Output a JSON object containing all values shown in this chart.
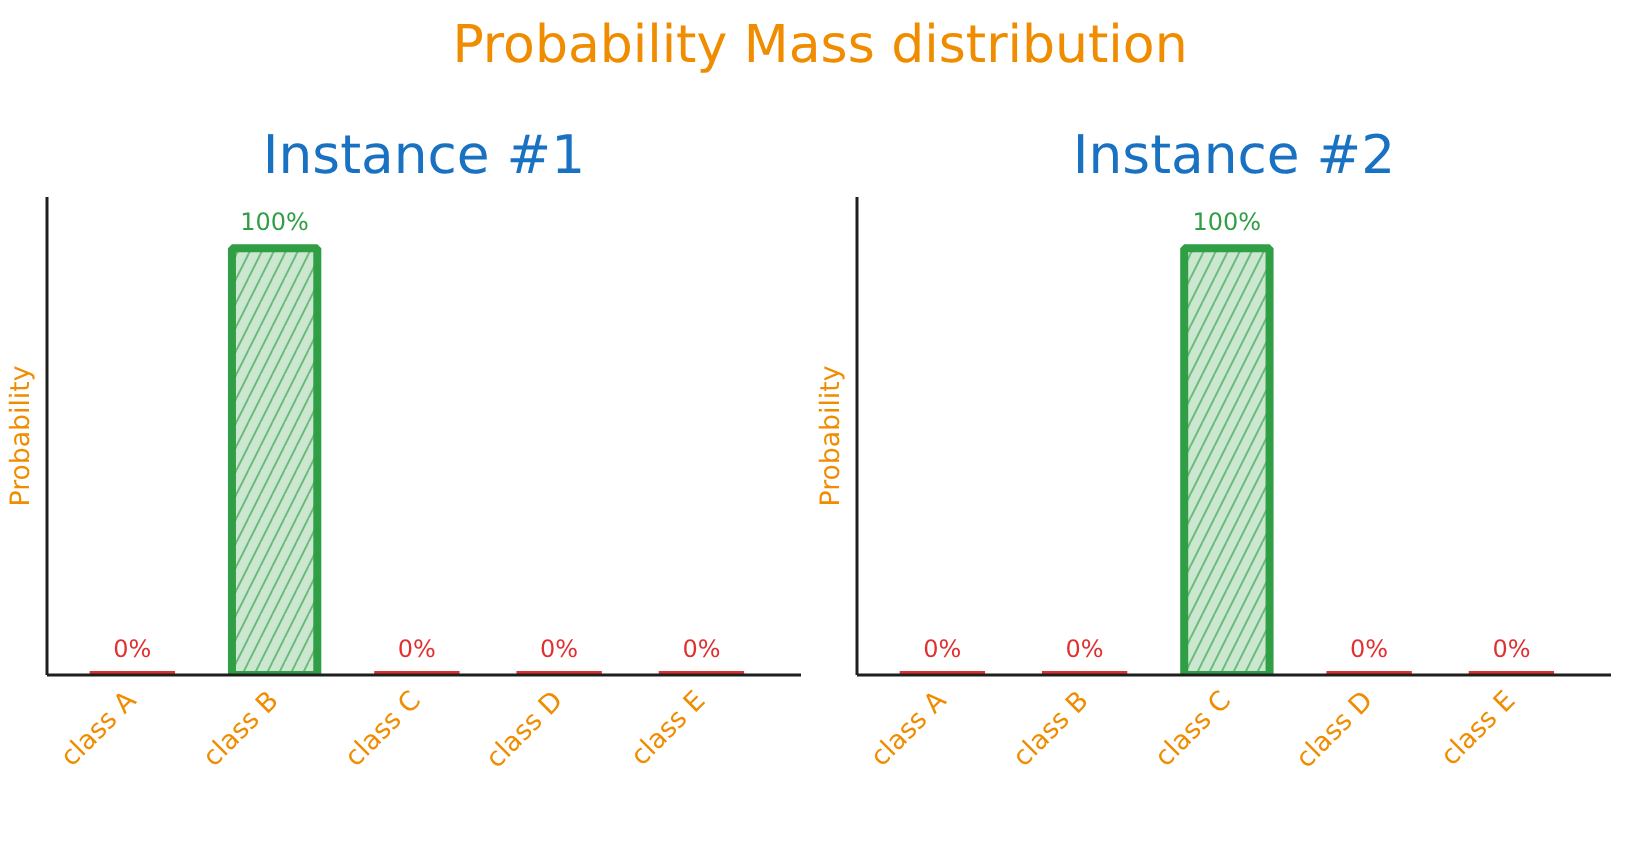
{
  "chart_data": [
    {
      "type": "bar",
      "title": "Instance #1",
      "ylabel": "Probability",
      "annotations": [
        "Probability Mass distribution"
      ],
      "categories": [
        "class A",
        "class B",
        "class C",
        "class D",
        "class E"
      ],
      "values": [
        0,
        100,
        0,
        0,
        0
      ],
      "colors": [
        "#e03131",
        "#2f9e44",
        "#e03131",
        "#e03131",
        "#e03131"
      ],
      "value_labels": [
        "0%",
        "100%",
        "0%",
        "0%",
        "0%"
      ],
      "tick_labels": "x",
      "grid": false
    },
    {
      "type": "bar",
      "title": "Instance #2",
      "ylabel": "Probability",
      "categories": [
        "class A",
        "class B",
        "class C",
        "class D",
        "class E"
      ],
      "values": [
        0,
        0,
        100,
        0,
        0
      ],
      "colors": [
        "#e03131",
        "#e03131",
        "#2f9e44",
        "#e03131",
        "#e03131"
      ],
      "value_labels": [
        "0%",
        "0%",
        "100%",
        "0%",
        "0%"
      ],
      "tick_labels": "x",
      "grid": false
    }
  ]
}
